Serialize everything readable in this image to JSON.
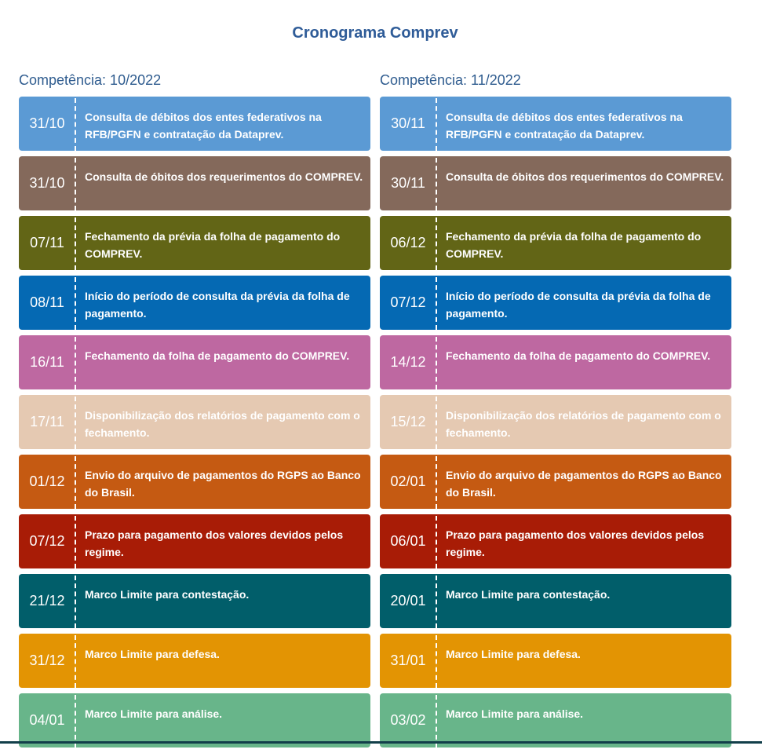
{
  "title": "Cronograma Comprev",
  "columns": [
    {
      "competencia": "Competência: 10/2022",
      "items": [
        {
          "date": "31/10",
          "text": "Consulta de débitos dos entes federativos na RFB/PGFN e contratação da Dataprev.",
          "color": "#5b9ad4"
        },
        {
          "date": "31/10",
          "text": "Consulta de óbitos dos requerimentos do COMPREV.",
          "color": "#84695b"
        },
        {
          "date": "07/11",
          "text": "Fechamento da prévia da folha de pagamento do COMPREV.",
          "color": "#626516"
        },
        {
          "date": "08/11",
          "text": "Início do período de consulta da prévia da folha de pagamento.",
          "color": "#0569b3"
        },
        {
          "date": "16/11",
          "text": "Fechamento da folha de pagamento do COMPREV.",
          "color": "#be68a1"
        },
        {
          "date": "17/11",
          "text": "Disponibilização dos relatórios de pagamento com o fechamento.",
          "color": "#e5c9b2"
        },
        {
          "date": "01/12",
          "text": "Envio do arquivo de pagamentos do RGPS ao Banco do Brasil.",
          "color": "#c55a12"
        },
        {
          "date": "07/12",
          "text": "Prazo para pagamento dos valores devidos pelos regime.",
          "color": "#a81c06"
        },
        {
          "date": "21/12",
          "text": "Marco Limite para contestação.",
          "color": "#015e6a"
        },
        {
          "date": "31/12",
          "text": "Marco Limite para defesa.",
          "color": "#e39403"
        },
        {
          "date": "04/01",
          "text": "Marco Limite para análise.",
          "color": "#68b58a"
        }
      ]
    },
    {
      "competencia": "Competência: 11/2022",
      "items": [
        {
          "date": "30/11",
          "text": "Consulta de débitos dos entes federativos na RFB/PGFN e contratação da Dataprev.",
          "color": "#5b9ad4"
        },
        {
          "date": "30/11",
          "text": "Consulta de óbitos dos requerimentos do COMPREV.",
          "color": "#84695b"
        },
        {
          "date": "06/12",
          "text": "Fechamento da prévia da folha de pagamento do COMPREV.",
          "color": "#626516"
        },
        {
          "date": "07/12",
          "text": "Início do período de consulta da prévia da folha de pagamento.",
          "color": "#0569b3"
        },
        {
          "date": "14/12",
          "text": "Fechamento da folha de pagamento do COMPREV.",
          "color": "#be68a1"
        },
        {
          "date": "15/12",
          "text": "Disponibilização dos relatórios de pagamento com o fechamento.",
          "color": "#e5c9b2"
        },
        {
          "date": "02/01",
          "text": "Envio do arquivo de pagamentos do RGPS ao Banco do Brasil.",
          "color": "#c55a12"
        },
        {
          "date": "06/01",
          "text": "Prazo para pagamento dos valores devidos pelos regime.",
          "color": "#a81c06"
        },
        {
          "date": "20/01",
          "text": "Marco Limite para contestação.",
          "color": "#015e6a"
        },
        {
          "date": "31/01",
          "text": "Marco Limite para defesa.",
          "color": "#e39403"
        },
        {
          "date": "03/02",
          "text": "Marco Limite para análise.",
          "color": "#68b58a"
        }
      ]
    }
  ]
}
